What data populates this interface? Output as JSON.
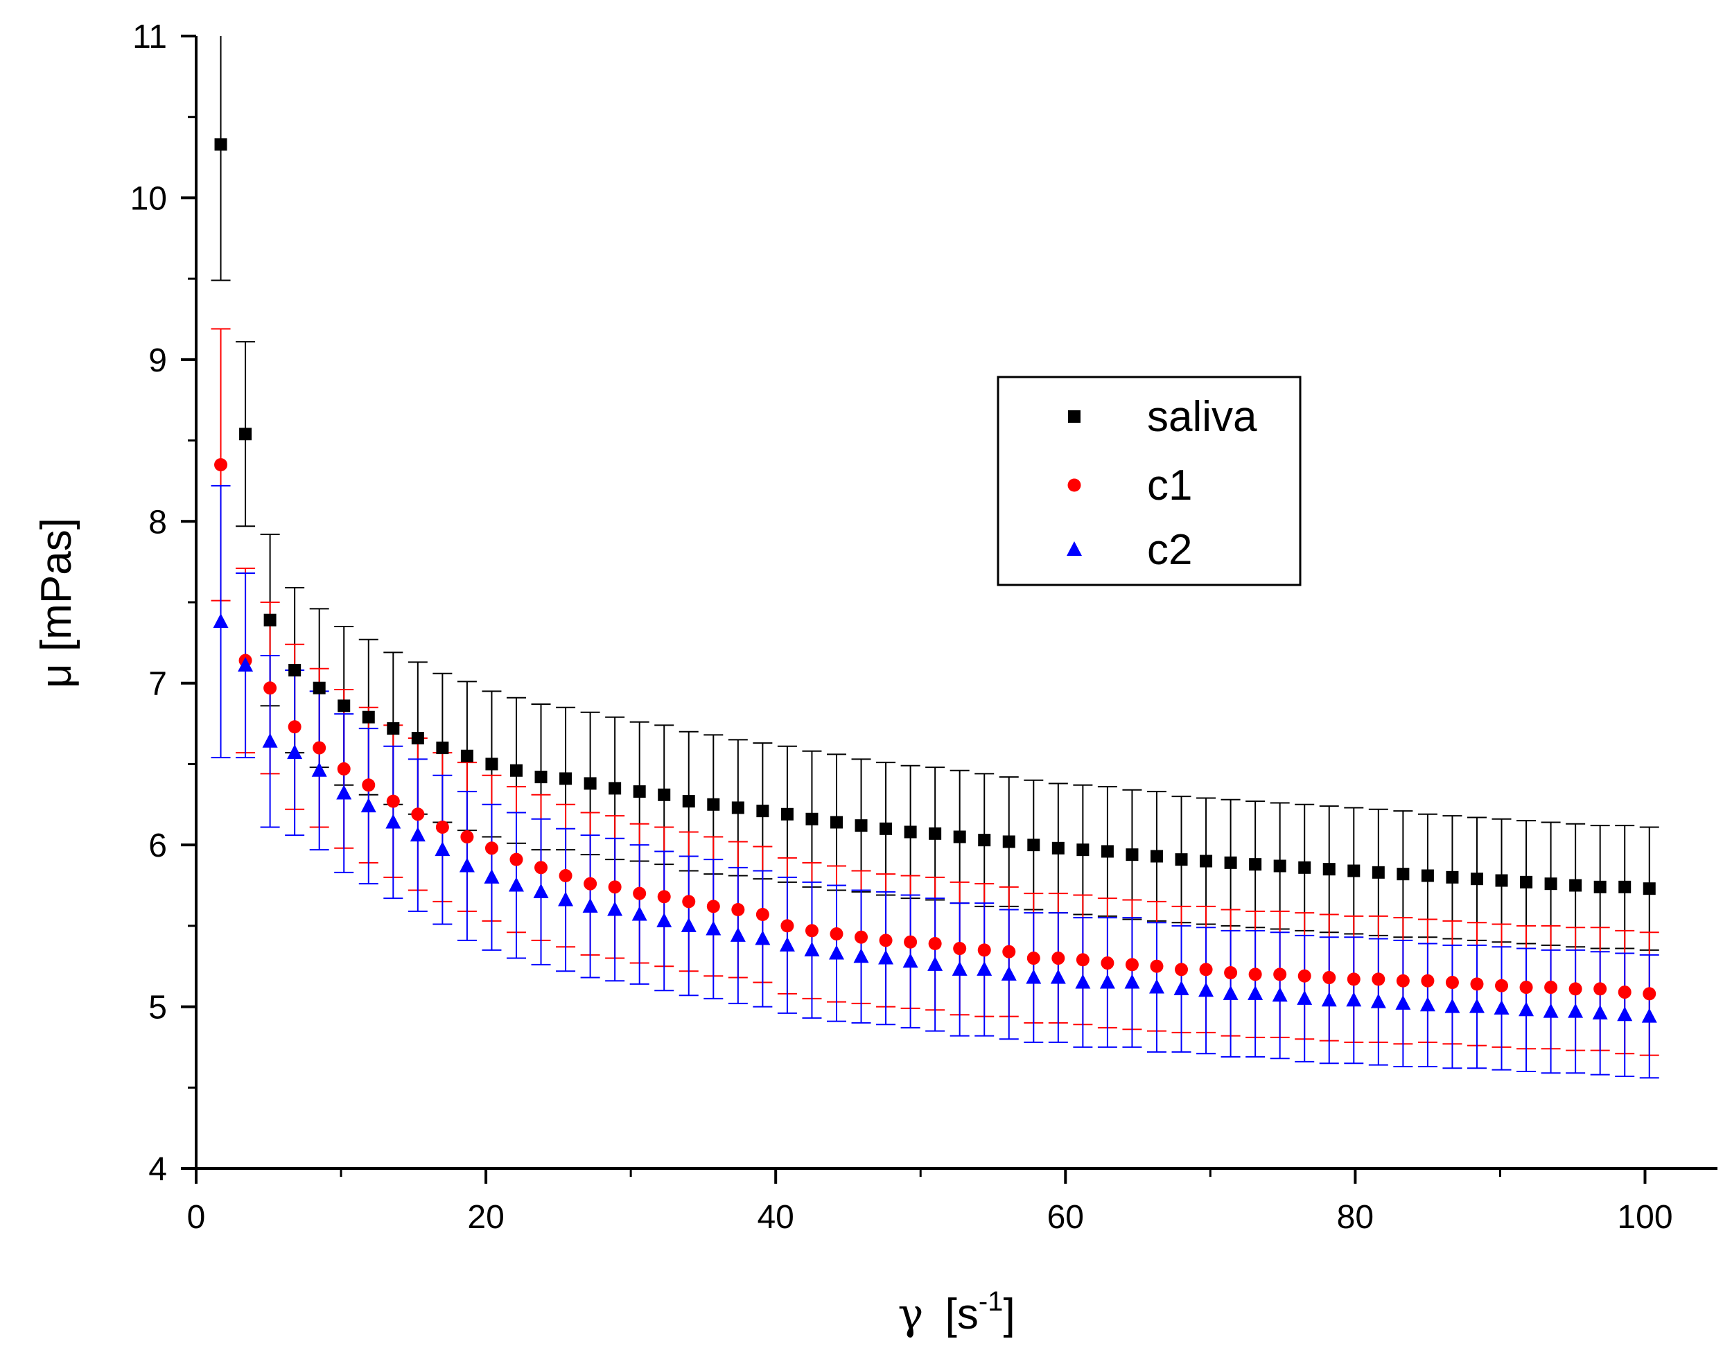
{
  "chart_data": {
    "type": "scatter",
    "title": "",
    "xlabel": {
      "symbol": "γ",
      "unit_pre": "[s",
      "unit_sup": "-1",
      "unit_post": "]"
    },
    "ylabel": "μ [mPas]",
    "xlim": [
      0,
      105
    ],
    "ylim": [
      4,
      11
    ],
    "xticks": [
      "0",
      "20",
      "40",
      "60",
      "80",
      "100"
    ],
    "yticks": [
      "4",
      "5",
      "6",
      "7",
      "8",
      "9",
      "10",
      "11"
    ],
    "legend_position": "upper-center-right",
    "x": [
      1.7,
      3.4,
      5.1,
      6.8,
      8.5,
      10.2,
      11.9,
      13.6,
      15.3,
      17.0,
      18.7,
      20.4,
      22.1,
      23.8,
      25.5,
      27.2,
      28.9,
      30.6,
      32.3,
      34.0,
      35.7,
      37.4,
      39.1,
      40.8,
      42.5,
      44.2,
      45.9,
      47.6,
      49.3,
      51.0,
      52.7,
      54.4,
      56.1,
      57.8,
      59.5,
      61.2,
      62.9,
      64.6,
      66.3,
      68.0,
      69.7,
      71.4,
      73.1,
      74.8,
      76.5,
      78.2,
      79.9,
      81.6,
      83.3,
      85.0,
      86.7,
      88.4,
      90.1,
      91.8,
      93.5,
      95.2,
      96.9,
      98.6,
      100.3
    ],
    "series": [
      {
        "name": "saliva",
        "color": "#000000",
        "marker": "square",
        "values": [
          10.33,
          8.54,
          7.39,
          7.08,
          6.97,
          6.86,
          6.79,
          6.72,
          6.66,
          6.6,
          6.55,
          6.5,
          6.46,
          6.42,
          6.41,
          6.38,
          6.35,
          6.33,
          6.31,
          6.27,
          6.25,
          6.23,
          6.21,
          6.19,
          6.16,
          6.14,
          6.12,
          6.1,
          6.08,
          6.07,
          6.05,
          6.03,
          6.02,
          6.0,
          5.98,
          5.97,
          5.96,
          5.94,
          5.93,
          5.91,
          5.9,
          5.89,
          5.88,
          5.87,
          5.86,
          5.85,
          5.84,
          5.83,
          5.82,
          5.81,
          5.8,
          5.79,
          5.78,
          5.77,
          5.76,
          5.75,
          5.74,
          5.74,
          5.73
        ],
        "errors": [
          0.84,
          0.57,
          0.53,
          0.51,
          0.49,
          0.49,
          0.48,
          0.47,
          0.47,
          0.46,
          0.46,
          0.45,
          0.45,
          0.45,
          0.44,
          0.44,
          0.44,
          0.43,
          0.43,
          0.43,
          0.43,
          0.42,
          0.42,
          0.42,
          0.42,
          0.42,
          0.41,
          0.41,
          0.41,
          0.41,
          0.41,
          0.41,
          0.4,
          0.4,
          0.4,
          0.4,
          0.4,
          0.4,
          0.4,
          0.39,
          0.39,
          0.39,
          0.39,
          0.39,
          0.39,
          0.39,
          0.39,
          0.39,
          0.39,
          0.38,
          0.38,
          0.38,
          0.38,
          0.38,
          0.38,
          0.38,
          0.38,
          0.38,
          0.38
        ]
      },
      {
        "name": "c1",
        "color": "#ff0000",
        "marker": "circle",
        "values": [
          8.35,
          7.14,
          6.97,
          6.73,
          6.6,
          6.47,
          6.37,
          6.27,
          6.19,
          6.11,
          6.05,
          5.98,
          5.91,
          5.86,
          5.81,
          5.76,
          5.74,
          5.7,
          5.68,
          5.65,
          5.62,
          5.6,
          5.57,
          5.5,
          5.47,
          5.45,
          5.43,
          5.41,
          5.4,
          5.39,
          5.36,
          5.35,
          5.34,
          5.3,
          5.3,
          5.29,
          5.27,
          5.26,
          5.25,
          5.23,
          5.23,
          5.21,
          5.2,
          5.2,
          5.19,
          5.18,
          5.17,
          5.17,
          5.16,
          5.16,
          5.15,
          5.14,
          5.13,
          5.12,
          5.12,
          5.11,
          5.11,
          5.09,
          5.08
        ],
        "errors": [
          0.84,
          0.57,
          0.53,
          0.51,
          0.49,
          0.49,
          0.48,
          0.47,
          0.47,
          0.46,
          0.46,
          0.45,
          0.45,
          0.45,
          0.44,
          0.44,
          0.44,
          0.43,
          0.43,
          0.43,
          0.43,
          0.42,
          0.42,
          0.42,
          0.42,
          0.42,
          0.41,
          0.41,
          0.41,
          0.41,
          0.41,
          0.41,
          0.4,
          0.4,
          0.4,
          0.4,
          0.4,
          0.4,
          0.4,
          0.39,
          0.39,
          0.39,
          0.39,
          0.39,
          0.39,
          0.39,
          0.39,
          0.39,
          0.39,
          0.38,
          0.38,
          0.38,
          0.38,
          0.38,
          0.38,
          0.38,
          0.38,
          0.38,
          0.38
        ]
      },
      {
        "name": "c2",
        "color": "#0000ff",
        "marker": "triangle",
        "values": [
          7.38,
          7.11,
          6.64,
          6.57,
          6.46,
          6.32,
          6.24,
          6.14,
          6.06,
          5.97,
          5.87,
          5.8,
          5.75,
          5.71,
          5.66,
          5.62,
          5.6,
          5.57,
          5.53,
          5.5,
          5.48,
          5.44,
          5.42,
          5.38,
          5.35,
          5.33,
          5.31,
          5.3,
          5.28,
          5.26,
          5.23,
          5.23,
          5.2,
          5.18,
          5.18,
          5.15,
          5.15,
          5.15,
          5.12,
          5.11,
          5.1,
          5.08,
          5.08,
          5.07,
          5.05,
          5.04,
          5.04,
          5.03,
          5.02,
          5.01,
          5.0,
          5.0,
          4.99,
          4.98,
          4.97,
          4.97,
          4.96,
          4.95,
          4.94
        ],
        "errors": [
          0.84,
          0.57,
          0.53,
          0.51,
          0.49,
          0.49,
          0.48,
          0.47,
          0.47,
          0.46,
          0.46,
          0.45,
          0.45,
          0.45,
          0.44,
          0.44,
          0.44,
          0.43,
          0.43,
          0.43,
          0.43,
          0.42,
          0.42,
          0.42,
          0.42,
          0.42,
          0.41,
          0.41,
          0.41,
          0.41,
          0.41,
          0.41,
          0.4,
          0.4,
          0.4,
          0.4,
          0.4,
          0.4,
          0.4,
          0.39,
          0.39,
          0.39,
          0.39,
          0.39,
          0.39,
          0.39,
          0.39,
          0.39,
          0.39,
          0.38,
          0.38,
          0.38,
          0.38,
          0.38,
          0.38,
          0.38,
          0.38,
          0.38,
          0.38
        ]
      }
    ]
  }
}
